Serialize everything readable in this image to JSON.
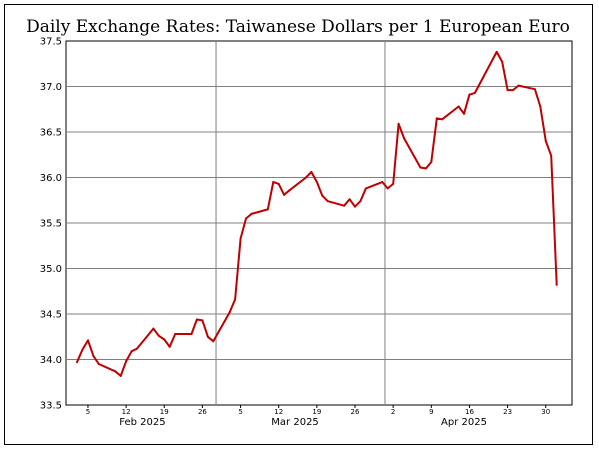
{
  "chart_data": {
    "type": "line",
    "title": "Daily Exchange Rates: Taiwanese Dollars per 1 European Euro",
    "xlabel": "",
    "ylabel": "",
    "ylim": [
      33.5,
      37.5
    ],
    "yticks": [
      "33.5",
      "34.0",
      "34.5",
      "35.0",
      "35.5",
      "36.0",
      "36.5",
      "37.0",
      "37.5"
    ],
    "x_day_ticks": [
      {
        "label": "5",
        "date": "2025-02-05"
      },
      {
        "label": "12",
        "date": "2025-02-12"
      },
      {
        "label": "19",
        "date": "2025-02-19"
      },
      {
        "label": "26",
        "date": "2025-02-26"
      },
      {
        "label": "5",
        "date": "2025-03-05"
      },
      {
        "label": "12",
        "date": "2025-03-12"
      },
      {
        "label": "19",
        "date": "2025-03-19"
      },
      {
        "label": "26",
        "date": "2025-03-26"
      },
      {
        "label": "2",
        "date": "2025-04-02"
      },
      {
        "label": "9",
        "date": "2025-04-09"
      },
      {
        "label": "16",
        "date": "2025-04-16"
      },
      {
        "label": "23",
        "date": "2025-04-23"
      },
      {
        "label": "30",
        "date": "2025-04-30"
      }
    ],
    "month_labels": [
      {
        "label": "Feb 2025",
        "date": "2025-02-15"
      },
      {
        "label": "Mar 2025",
        "date": "2025-03-15"
      },
      {
        "label": "Apr 2025",
        "date": "2025-04-15"
      }
    ],
    "month_dividers": [
      "2025-03-01",
      "2025-04-01"
    ],
    "grid": "horizontal-at-y-ticks",
    "line_color": "#c00000",
    "series": [
      {
        "name": "",
        "points": [
          [
            "2025-02-03",
            33.97
          ],
          [
            "2025-02-04",
            34.11
          ],
          [
            "2025-02-05",
            34.21
          ],
          [
            "2025-02-06",
            34.04
          ],
          [
            "2025-02-07",
            33.95
          ],
          [
            "2025-02-10",
            33.87
          ],
          [
            "2025-02-11",
            33.82
          ],
          [
            "2025-02-12",
            33.98
          ],
          [
            "2025-02-13",
            34.09
          ],
          [
            "2025-02-14",
            34.12
          ],
          [
            "2025-02-17",
            34.34
          ],
          [
            "2025-02-18",
            34.26
          ],
          [
            "2025-02-19",
            34.22
          ],
          [
            "2025-02-20",
            34.14
          ],
          [
            "2025-02-21",
            34.28
          ],
          [
            "2025-02-24",
            34.28
          ],
          [
            "2025-02-25",
            34.44
          ],
          [
            "2025-02-26",
            34.43
          ],
          [
            "2025-02-27",
            34.25
          ],
          [
            "2025-02-28",
            34.2
          ],
          [
            "2025-03-03",
            34.52
          ],
          [
            "2025-03-04",
            34.66
          ],
          [
            "2025-03-05",
            35.33
          ],
          [
            "2025-03-06",
            35.55
          ],
          [
            "2025-03-07",
            35.6
          ],
          [
            "2025-03-10",
            35.65
          ],
          [
            "2025-03-11",
            35.95
          ],
          [
            "2025-03-12",
            35.93
          ],
          [
            "2025-03-13",
            35.81
          ],
          [
            "2025-03-14",
            35.86
          ],
          [
            "2025-03-17",
            36.0
          ],
          [
            "2025-03-18",
            36.06
          ],
          [
            "2025-03-19",
            35.95
          ],
          [
            "2025-03-20",
            35.8
          ],
          [
            "2025-03-21",
            35.74
          ],
          [
            "2025-03-24",
            35.69
          ],
          [
            "2025-03-25",
            35.76
          ],
          [
            "2025-03-26",
            35.68
          ],
          [
            "2025-03-27",
            35.74
          ],
          [
            "2025-03-28",
            35.88
          ],
          [
            "2025-03-31",
            35.95
          ],
          [
            "2025-04-01",
            35.88
          ],
          [
            "2025-04-02",
            35.93
          ],
          [
            "2025-04-03",
            36.59
          ],
          [
            "2025-04-04",
            36.43
          ],
          [
            "2025-04-07",
            36.11
          ],
          [
            "2025-04-08",
            36.1
          ],
          [
            "2025-04-09",
            36.17
          ],
          [
            "2025-04-10",
            36.65
          ],
          [
            "2025-04-11",
            36.64
          ],
          [
            "2025-04-14",
            36.78
          ],
          [
            "2025-04-15",
            36.7
          ],
          [
            "2025-04-16",
            36.91
          ],
          [
            "2025-04-17",
            36.93
          ],
          [
            "2025-04-21",
            37.38
          ],
          [
            "2025-04-22",
            37.27
          ],
          [
            "2025-04-23",
            36.96
          ],
          [
            "2025-04-24",
            36.96
          ],
          [
            "2025-04-25",
            37.01
          ],
          [
            "2025-04-28",
            36.97
          ],
          [
            "2025-04-29",
            36.78
          ],
          [
            "2025-04-30",
            36.4
          ],
          [
            "2025-05-01",
            36.24
          ],
          [
            "2025-05-02",
            34.82
          ]
        ]
      }
    ]
  }
}
